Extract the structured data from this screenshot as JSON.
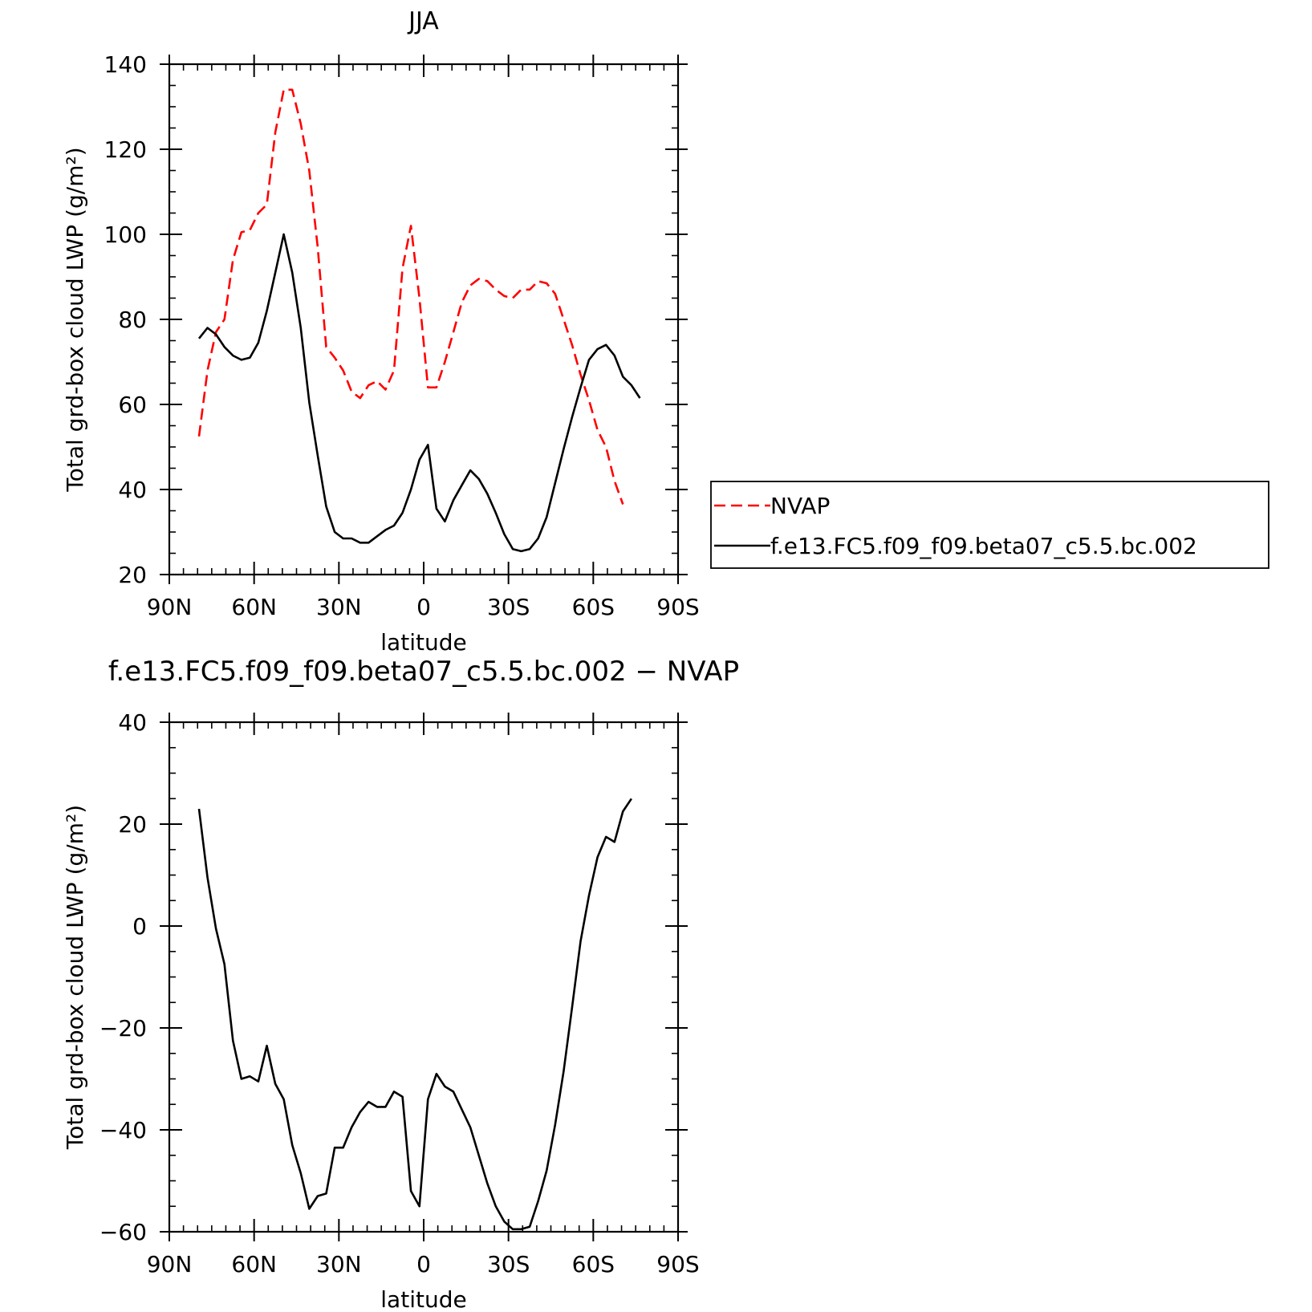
{
  "chart_data": [
    {
      "type": "line",
      "title": "JJA",
      "xlabel": "latitude",
      "ylabel": "Total grd-box cloud LWP (g/m²)",
      "xlim": [
        90,
        -90
      ],
      "ylim": [
        20,
        140
      ],
      "x_ticks": [
        {
          "value": 90,
          "label": "90N"
        },
        {
          "value": 60,
          "label": "60N"
        },
        {
          "value": 30,
          "label": "30N"
        },
        {
          "value": 0,
          "label": "0"
        },
        {
          "value": -30,
          "label": "30S"
        },
        {
          "value": -60,
          "label": "60S"
        },
        {
          "value": -90,
          "label": "90S"
        }
      ],
      "y_ticks": [
        20,
        40,
        60,
        80,
        100,
        120,
        140
      ],
      "legend": {
        "placement": "right"
      },
      "series": [
        {
          "name": "NVAP",
          "color": "#ff0000",
          "style": "dashed",
          "points": [
            [
              79.5,
              52.5
            ],
            [
              76.5,
              68
            ],
            [
              73.5,
              77
            ],
            [
              70.5,
              80
            ],
            [
              67.5,
              94
            ],
            [
              64.5,
              100.5
            ],
            [
              61.5,
              101
            ],
            [
              58.5,
              105
            ],
            [
              55.5,
              107
            ],
            [
              52.5,
              124
            ],
            [
              49.5,
              134
            ],
            [
              46.5,
              134
            ],
            [
              43.5,
              126
            ],
            [
              40.5,
              115
            ],
            [
              37.5,
              97
            ],
            [
              34.5,
              73.5
            ],
            [
              31.5,
              71
            ],
            [
              28.5,
              68
            ],
            [
              25.5,
              63
            ],
            [
              22.5,
              61.5
            ],
            [
              19.5,
              64.5
            ],
            [
              16.5,
              65.5
            ],
            [
              13.5,
              63.5
            ],
            [
              10.5,
              68
            ],
            [
              7.5,
              92
            ],
            [
              4.5,
              102
            ],
            [
              1.5,
              85
            ],
            [
              -1.5,
              64
            ],
            [
              -4.5,
              64
            ],
            [
              -7.5,
              70
            ],
            [
              -10.5,
              77
            ],
            [
              -13.5,
              84
            ],
            [
              -16.5,
              88
            ],
            [
              -19.5,
              89.5
            ],
            [
              -22.5,
              89
            ],
            [
              -25.5,
              87
            ],
            [
              -28.5,
              85.5
            ],
            [
              -31.5,
              85
            ],
            [
              -34.5,
              87
            ],
            [
              -37.5,
              87
            ],
            [
              -40.5,
              89
            ],
            [
              -43.5,
              88.5
            ],
            [
              -46.5,
              86
            ],
            [
              -49.5,
              80
            ],
            [
              -52.5,
              74
            ],
            [
              -55.5,
              67
            ],
            [
              -58.5,
              61
            ],
            [
              -61.5,
              54
            ],
            [
              -64.5,
              50
            ],
            [
              -67.5,
              42
            ],
            [
              -70.5,
              36.5
            ]
          ]
        },
        {
          "name": "f.e13.FC5.f09_f09.beta07_c5.5.bc.002",
          "color": "#000000",
          "style": "solid",
          "points": [
            [
              79.5,
              75.5
            ],
            [
              76.5,
              78
            ],
            [
              73.5,
              76.5
            ],
            [
              70.5,
              73.5
            ],
            [
              67.5,
              71.5
            ],
            [
              64.5,
              70.5
            ],
            [
              61.5,
              71
            ],
            [
              58.5,
              74.5
            ],
            [
              55.5,
              82
            ],
            [
              52.5,
              91
            ],
            [
              49.5,
              100
            ],
            [
              46.5,
              91
            ],
            [
              43.5,
              78
            ],
            [
              40.5,
              60.5
            ],
            [
              37.5,
              48
            ],
            [
              34.5,
              36
            ],
            [
              31.5,
              30
            ],
            [
              28.5,
              28.5
            ],
            [
              25.5,
              28.5
            ],
            [
              22.5,
              27.5
            ],
            [
              19.5,
              27.5
            ],
            [
              16.5,
              29
            ],
            [
              13.5,
              30.5
            ],
            [
              10.5,
              31.5
            ],
            [
              7.5,
              34.5
            ],
            [
              4.5,
              40
            ],
            [
              1.5,
              47
            ],
            [
              -1.5,
              50.5
            ],
            [
              -4.5,
              35.5
            ],
            [
              -7.5,
              32.5
            ],
            [
              -10.5,
              37.5
            ],
            [
              -13.5,
              41
            ],
            [
              -16.5,
              44.5
            ],
            [
              -19.5,
              42.5
            ],
            [
              -22.5,
              39
            ],
            [
              -25.5,
              34.5
            ],
            [
              -28.5,
              29.5
            ],
            [
              -31.5,
              26
            ],
            [
              -34.5,
              25.5
            ],
            [
              -37.5,
              26
            ],
            [
              -40.5,
              28.5
            ],
            [
              -43.5,
              33.5
            ],
            [
              -46.5,
              41.5
            ],
            [
              -49.5,
              49.5
            ],
            [
              -52.5,
              57
            ],
            [
              -55.5,
              64
            ],
            [
              -58.5,
              70.5
            ],
            [
              -61.5,
              73
            ],
            [
              -64.5,
              74
            ],
            [
              -67.5,
              71.5
            ],
            [
              -70.5,
              66.5
            ],
            [
              -73.5,
              64.5
            ],
            [
              -76.5,
              61.5
            ]
          ]
        }
      ]
    },
    {
      "type": "line",
      "title": "f.e13.FC5.f09_f09.beta07_c5.5.bc.002 − NVAP",
      "xlabel": "latitude",
      "ylabel": "Total grd-box cloud LWP (g/m²)",
      "xlim": [
        90,
        -90
      ],
      "ylim": [
        -60,
        40
      ],
      "x_ticks": [
        {
          "value": 90,
          "label": "90N"
        },
        {
          "value": 60,
          "label": "60N"
        },
        {
          "value": 30,
          "label": "30N"
        },
        {
          "value": 0,
          "label": "0"
        },
        {
          "value": -30,
          "label": "30S"
        },
        {
          "value": -60,
          "label": "60S"
        },
        {
          "value": -90,
          "label": "90S"
        }
      ],
      "y_ticks": [
        -60,
        -40,
        -20,
        0,
        20,
        40
      ],
      "series": [
        {
          "color": "#000000",
          "style": "solid",
          "points": [
            [
              79.5,
              23
            ],
            [
              76.5,
              9.5
            ],
            [
              73.5,
              -0.5
            ],
            [
              70.5,
              -7.5
            ],
            [
              67.5,
              -22.5
            ],
            [
              64.5,
              -30
            ],
            [
              61.5,
              -29.5
            ],
            [
              58.5,
              -30.5
            ],
            [
              55.5,
              -23.5
            ],
            [
              52.5,
              -31
            ],
            [
              49.5,
              -34
            ],
            [
              46.5,
              -43
            ],
            [
              43.5,
              -48.5
            ],
            [
              40.5,
              -55.5
            ],
            [
              37.5,
              -53
            ],
            [
              34.5,
              -52.5
            ],
            [
              31.5,
              -43.5
            ],
            [
              28.5,
              -43.5
            ],
            [
              25.5,
              -39.5
            ],
            [
              22.5,
              -36.5
            ],
            [
              19.5,
              -34.5
            ],
            [
              16.5,
              -35.5
            ],
            [
              13.5,
              -35.5
            ],
            [
              10.5,
              -32.5
            ],
            [
              7.5,
              -33.5
            ],
            [
              4.5,
              -52
            ],
            [
              1.5,
              -55
            ],
            [
              -1.5,
              -34
            ],
            [
              -4.5,
              -29
            ],
            [
              -7.5,
              -31.5
            ],
            [
              -10.5,
              -32.5
            ],
            [
              -13.5,
              -36
            ],
            [
              -16.5,
              -39.5
            ],
            [
              -19.5,
              -45
            ],
            [
              -22.5,
              -50.5
            ],
            [
              -25.5,
              -55
            ],
            [
              -28.5,
              -58
            ],
            [
              -31.5,
              -59.5
            ],
            [
              -34.5,
              -59.5
            ],
            [
              -37.5,
              -59
            ],
            [
              -40.5,
              -54
            ],
            [
              -43.5,
              -48
            ],
            [
              -46.5,
              -39
            ],
            [
              -49.5,
              -28.5
            ],
            [
              -52.5,
              -16
            ],
            [
              -55.5,
              -3
            ],
            [
              -58.5,
              6
            ],
            [
              -61.5,
              13.5
            ],
            [
              -64.5,
              17.5
            ],
            [
              -67.5,
              16.5
            ],
            [
              -70.5,
              22.5
            ],
            [
              -73.5,
              25
            ]
          ]
        }
      ]
    }
  ]
}
